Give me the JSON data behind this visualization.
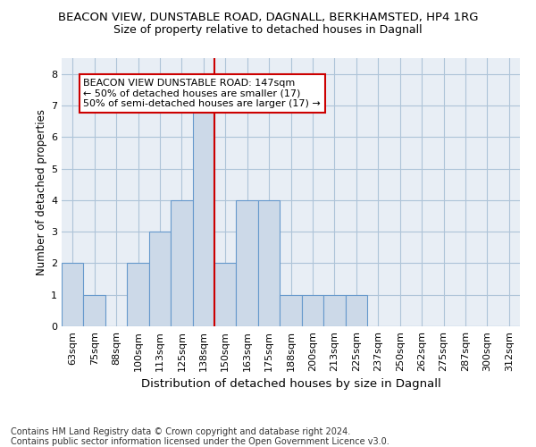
{
  "title1": "BEACON VIEW, DUNSTABLE ROAD, DAGNALL, BERKHAMSTED, HP4 1RG",
  "title2": "Size of property relative to detached houses in Dagnall",
  "xlabel": "Distribution of detached houses by size in Dagnall",
  "ylabel": "Number of detached properties",
  "categories": [
    "63sqm",
    "75sqm",
    "88sqm",
    "100sqm",
    "113sqm",
    "125sqm",
    "138sqm",
    "150sqm",
    "163sqm",
    "175sqm",
    "188sqm",
    "200sqm",
    "213sqm",
    "225sqm",
    "237sqm",
    "250sqm",
    "262sqm",
    "275sqm",
    "287sqm",
    "300sqm",
    "312sqm"
  ],
  "values": [
    2,
    1,
    0,
    2,
    3,
    4,
    7,
    2,
    4,
    4,
    1,
    1,
    1,
    1,
    0,
    0,
    0,
    0,
    0,
    0,
    0
  ],
  "bar_color": "#ccd9e8",
  "bar_edge_color": "#6699cc",
  "red_line_color": "#cc0000",
  "red_line_index": 7,
  "ylim": [
    0,
    8.5
  ],
  "yticks": [
    0,
    1,
    2,
    3,
    4,
    5,
    6,
    7,
    8
  ],
  "annotation_text": "BEACON VIEW DUNSTABLE ROAD: 147sqm\n← 50% of detached houses are smaller (17)\n50% of semi-detached houses are larger (17) →",
  "footnote": "Contains HM Land Registry data © Crown copyright and database right 2024.\nContains public sector information licensed under the Open Government Licence v3.0.",
  "plot_bg_color": "#e8eef5",
  "fig_bg_color": "#ffffff",
  "grid_color": "#aec4d8",
  "title1_fontsize": 9.5,
  "title2_fontsize": 9,
  "xlabel_fontsize": 9.5,
  "ylabel_fontsize": 8.5,
  "tick_fontsize": 8,
  "annotation_fontsize": 8,
  "footnote_fontsize": 7
}
